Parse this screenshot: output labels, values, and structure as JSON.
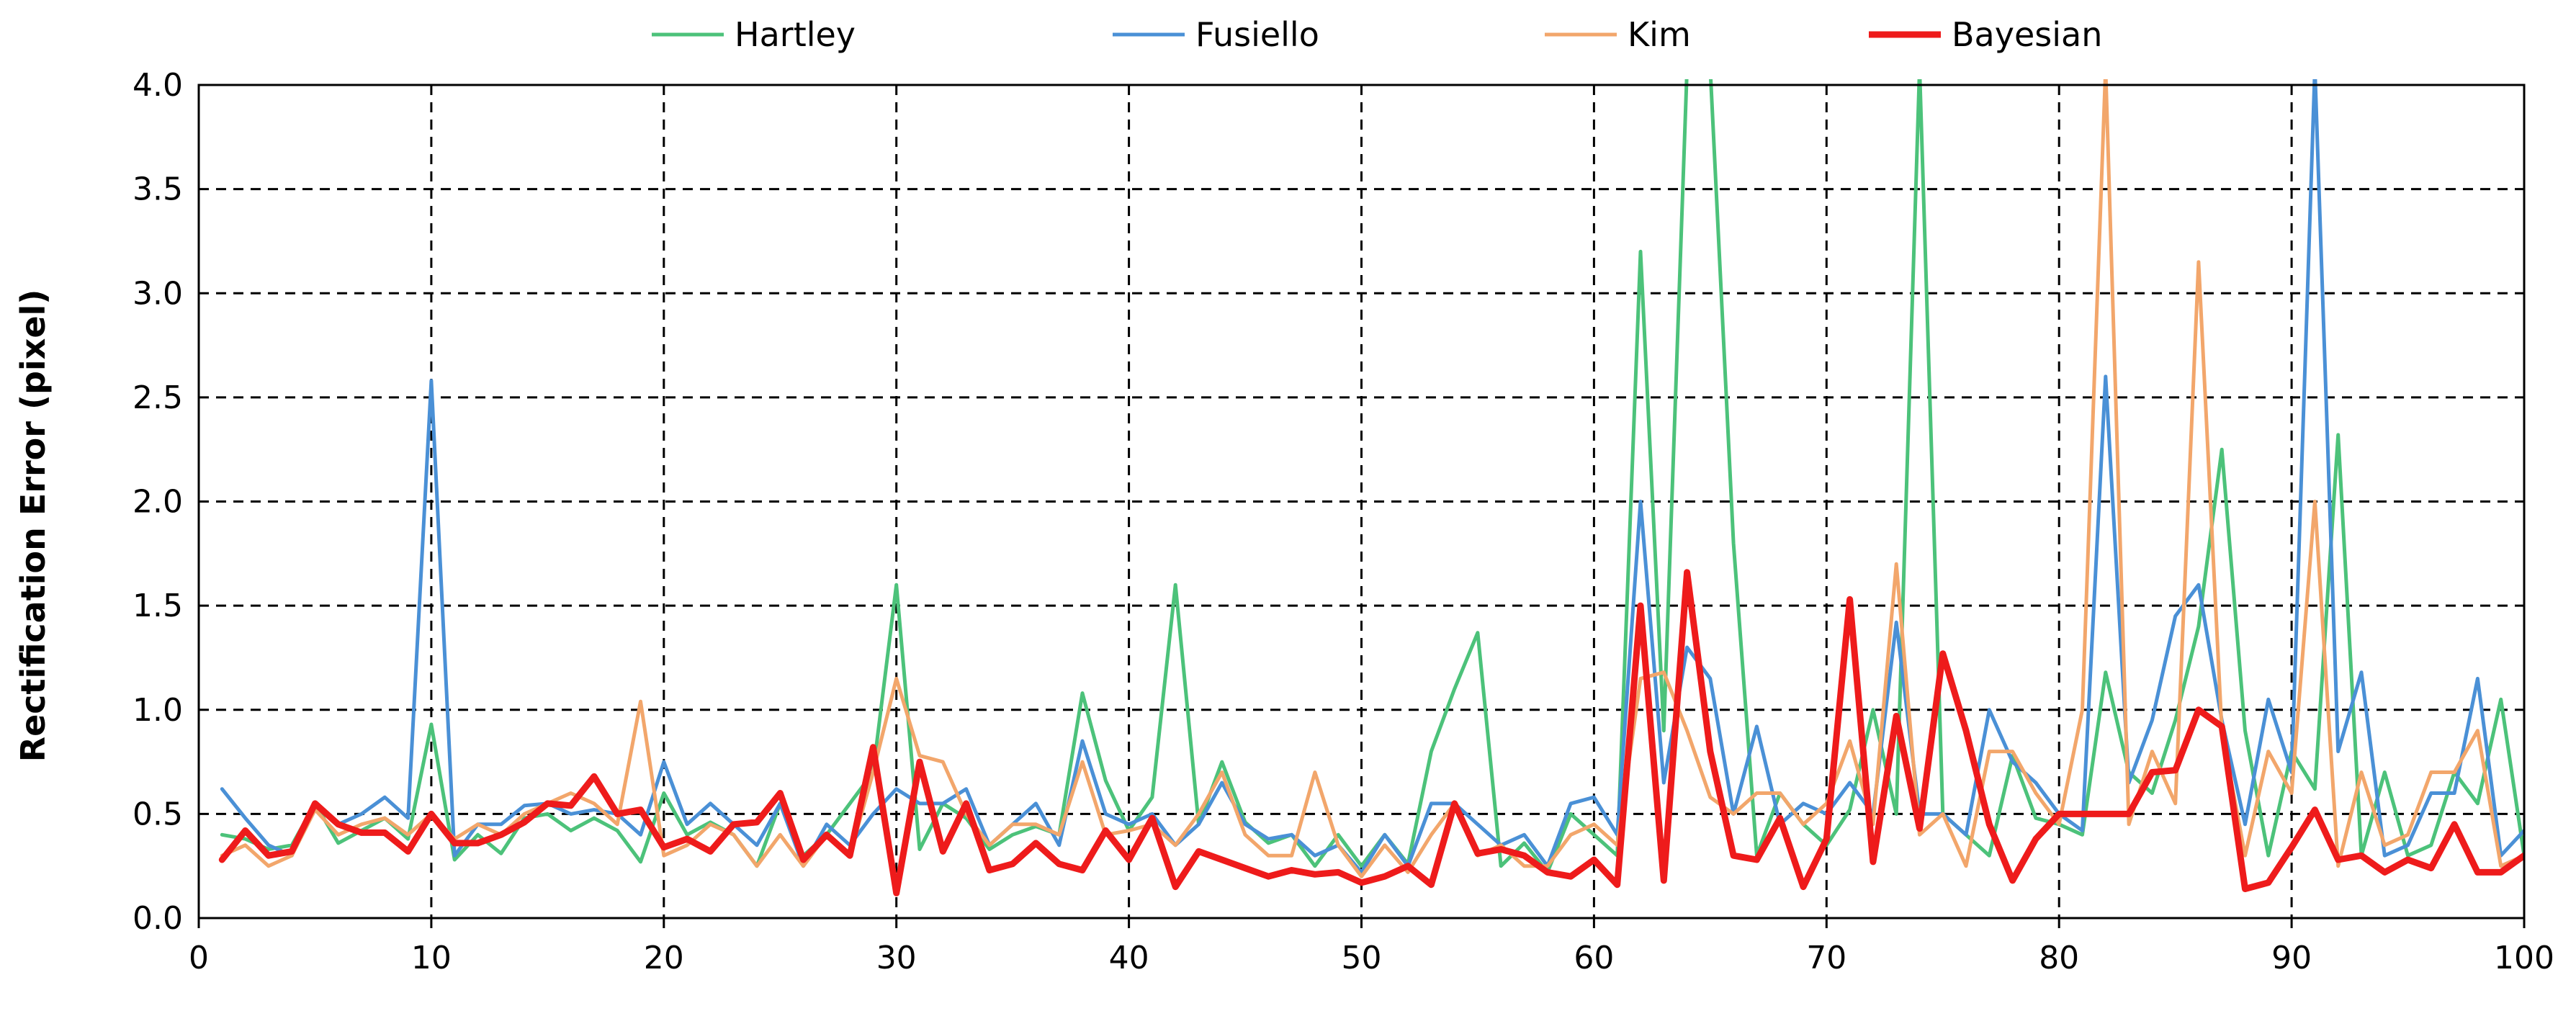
{
  "chart_data": {
    "type": "line",
    "title": "",
    "xlabel": "",
    "ylabel": "Rectification Error (pixel)",
    "xlim": [
      0,
      100
    ],
    "ylim": [
      0,
      4.0
    ],
    "x_ticks": [
      0,
      10,
      20,
      30,
      40,
      50,
      60,
      70,
      80,
      90,
      100
    ],
    "y_ticks": [
      "0.0",
      "0.5",
      "1.0",
      "1.5",
      "2.0",
      "2.5",
      "3.0",
      "3.5",
      "4.0"
    ],
    "grid": true,
    "legend_position": "top",
    "x": [
      1,
      2,
      3,
      4,
      5,
      6,
      7,
      8,
      9,
      10,
      11,
      12,
      13,
      14,
      15,
      16,
      17,
      18,
      19,
      20,
      21,
      22,
      23,
      24,
      25,
      26,
      27,
      28,
      29,
      30,
      31,
      32,
      33,
      34,
      35,
      36,
      37,
      38,
      39,
      40,
      41,
      42,
      43,
      44,
      45,
      46,
      47,
      48,
      49,
      50,
      51,
      52,
      53,
      54,
      55,
      56,
      57,
      58,
      59,
      60,
      61,
      62,
      63,
      64,
      65,
      66,
      67,
      68,
      69,
      70,
      71,
      72,
      73,
      74,
      75,
      76,
      77,
      78,
      79,
      80,
      81,
      82,
      83,
      84,
      85,
      86,
      87,
      88,
      89,
      90,
      91,
      92,
      93,
      94,
      95,
      96,
      97,
      98,
      99,
      100
    ],
    "series": [
      {
        "name": "Hartley",
        "color": "#4cc27a",
        "width": 5,
        "values": [
          0.4,
          0.38,
          0.33,
          0.35,
          0.55,
          0.36,
          0.42,
          0.48,
          0.38,
          0.93,
          0.28,
          0.4,
          0.31,
          0.48,
          0.5,
          0.42,
          0.48,
          0.42,
          0.27,
          0.6,
          0.4,
          0.46,
          0.4,
          0.25,
          0.55,
          0.3,
          0.4,
          0.55,
          0.7,
          1.6,
          0.33,
          0.55,
          0.48,
          0.33,
          0.4,
          0.44,
          0.4,
          1.08,
          0.66,
          0.42,
          0.58,
          1.6,
          0.45,
          0.75,
          0.46,
          0.36,
          0.4,
          0.25,
          0.4,
          0.25,
          0.4,
          0.26,
          0.8,
          1.1,
          1.37,
          0.25,
          0.36,
          0.22,
          0.5,
          0.4,
          0.3,
          3.2,
          0.9,
          4.3,
          4.3,
          1.8,
          0.3,
          0.6,
          0.45,
          0.35,
          0.52,
          1.0,
          0.5,
          4.1,
          0.5,
          0.4,
          0.3,
          0.78,
          0.48,
          0.45,
          0.4,
          1.18,
          0.7,
          0.6,
          0.95,
          1.4,
          2.25,
          0.9,
          0.3,
          0.8,
          0.62,
          2.32,
          0.3,
          0.7,
          0.3,
          0.35,
          0.7,
          0.55,
          1.05,
          0.3
        ]
      },
      {
        "name": "Fusiello",
        "color": "#4a90d6",
        "width": 5,
        "values": [
          0.62,
          0.48,
          0.35,
          0.3,
          0.55,
          0.45,
          0.5,
          0.58,
          0.48,
          2.58,
          0.3,
          0.45,
          0.45,
          0.54,
          0.55,
          0.5,
          0.52,
          0.5,
          0.4,
          0.75,
          0.45,
          0.55,
          0.45,
          0.35,
          0.55,
          0.25,
          0.45,
          0.35,
          0.5,
          0.62,
          0.55,
          0.55,
          0.62,
          0.35,
          0.45,
          0.55,
          0.35,
          0.85,
          0.5,
          0.45,
          0.5,
          0.35,
          0.45,
          0.65,
          0.45,
          0.38,
          0.4,
          0.3,
          0.35,
          0.22,
          0.4,
          0.25,
          0.55,
          0.55,
          0.45,
          0.35,
          0.4,
          0.25,
          0.55,
          0.58,
          0.4,
          2.0,
          0.65,
          1.3,
          1.15,
          0.5,
          0.92,
          0.45,
          0.55,
          0.5,
          0.65,
          0.5,
          1.42,
          0.5,
          0.5,
          0.4,
          1.0,
          0.75,
          0.65,
          0.5,
          0.42,
          2.6,
          0.65,
          0.95,
          1.45,
          1.6,
          0.95,
          0.45,
          1.05,
          0.7,
          4.3,
          0.8,
          1.18,
          0.3,
          0.35,
          0.6,
          0.6,
          1.15,
          0.3,
          0.42
        ]
      },
      {
        "name": "Kim",
        "color": "#f2a66b",
        "width": 5,
        "values": [
          0.3,
          0.35,
          0.25,
          0.3,
          0.52,
          0.4,
          0.45,
          0.48,
          0.4,
          0.5,
          0.38,
          0.45,
          0.4,
          0.5,
          0.55,
          0.6,
          0.55,
          0.45,
          1.04,
          0.3,
          0.35,
          0.45,
          0.4,
          0.25,
          0.4,
          0.25,
          0.4,
          0.3,
          0.7,
          1.15,
          0.78,
          0.75,
          0.5,
          0.35,
          0.45,
          0.45,
          0.4,
          0.75,
          0.4,
          0.42,
          0.45,
          0.35,
          0.5,
          0.7,
          0.4,
          0.3,
          0.3,
          0.7,
          0.35,
          0.2,
          0.35,
          0.22,
          0.4,
          0.55,
          0.3,
          0.35,
          0.25,
          0.25,
          0.4,
          0.45,
          0.35,
          1.15,
          1.18,
          0.9,
          0.58,
          0.5,
          0.6,
          0.6,
          0.45,
          0.55,
          0.85,
          0.45,
          1.7,
          0.4,
          0.5,
          0.25,
          0.8,
          0.8,
          0.6,
          0.45,
          1.0,
          4.2,
          0.45,
          0.8,
          0.55,
          3.15,
          0.9,
          0.3,
          0.8,
          0.6,
          2.0,
          0.25,
          0.7,
          0.35,
          0.4,
          0.7,
          0.7,
          0.9,
          0.25,
          0.3
        ]
      },
      {
        "name": "Bayesian",
        "color": "#ee1b1b",
        "width": 9,
        "values": [
          0.28,
          0.42,
          0.3,
          0.32,
          0.55,
          0.45,
          0.41,
          0.41,
          0.32,
          0.5,
          0.36,
          0.36,
          0.4,
          0.46,
          0.55,
          0.54,
          0.68,
          0.5,
          0.52,
          0.34,
          0.38,
          0.32,
          0.45,
          0.46,
          0.6,
          0.28,
          0.4,
          0.3,
          0.82,
          0.12,
          0.75,
          0.32,
          0.55,
          0.23,
          0.26,
          0.36,
          0.26,
          0.23,
          0.42,
          0.28,
          0.48,
          0.15,
          0.32,
          0.28,
          0.24,
          0.2,
          0.23,
          0.21,
          0.22,
          0.17,
          0.2,
          0.25,
          0.16,
          0.55,
          0.31,
          0.33,
          0.3,
          0.22,
          0.2,
          0.28,
          0.16,
          1.5,
          0.18,
          1.66,
          0.8,
          0.3,
          0.28,
          0.48,
          0.15,
          0.38,
          1.53,
          0.27,
          0.97,
          0.43,
          1.27,
          0.9,
          0.45,
          0.18,
          0.38,
          0.5,
          0.5,
          0.5,
          0.5,
          0.7,
          0.71,
          1.0,
          0.92,
          0.14,
          0.17,
          0.34,
          0.52,
          0.28,
          0.3,
          0.22,
          0.28,
          0.24,
          0.45,
          0.22,
          0.22,
          0.3
        ]
      }
    ]
  }
}
